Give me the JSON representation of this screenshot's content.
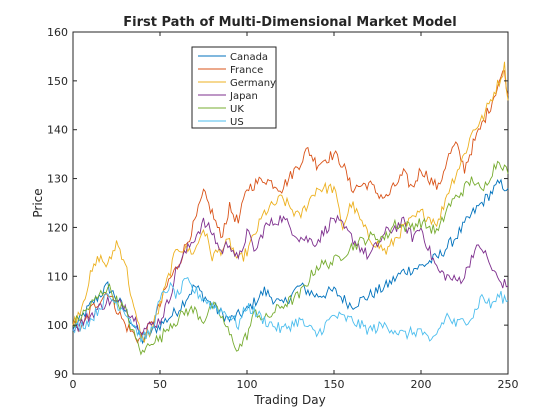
{
  "chart_data": {
    "type": "line",
    "title": "First Path of Multi-Dimensional Market Model",
    "xlabel": "Trading Day",
    "ylabel": "Price",
    "xlim": [
      0,
      250
    ],
    "ylim": [
      90,
      160
    ],
    "xticks": [
      0,
      50,
      100,
      150,
      200,
      250
    ],
    "yticks": [
      90,
      100,
      110,
      120,
      130,
      140,
      150,
      160
    ],
    "grid": false,
    "legend_position": "top-center",
    "series": [
      {
        "name": "Canada",
        "color": "#0072BD",
        "points": [
          [
            0,
            99
          ],
          [
            10,
            104
          ],
          [
            20,
            108
          ],
          [
            30,
            103
          ],
          [
            40,
            97
          ],
          [
            50,
            100
          ],
          [
            60,
            103
          ],
          [
            70,
            108
          ],
          [
            80,
            104
          ],
          [
            90,
            101
          ],
          [
            100,
            103
          ],
          [
            110,
            107
          ],
          [
            120,
            104
          ],
          [
            130,
            108
          ],
          [
            140,
            106
          ],
          [
            150,
            107
          ],
          [
            160,
            104
          ],
          [
            170,
            106
          ],
          [
            180,
            108
          ],
          [
            190,
            111
          ],
          [
            200,
            112
          ],
          [
            210,
            114
          ],
          [
            220,
            118
          ],
          [
            230,
            123
          ],
          [
            240,
            127
          ],
          [
            245,
            129
          ],
          [
            250,
            128
          ]
        ]
      },
      {
        "name": "France",
        "color": "#D95319",
        "points": [
          [
            0,
            100
          ],
          [
            5,
            99
          ],
          [
            10,
            103
          ],
          [
            20,
            107
          ],
          [
            30,
            100
          ],
          [
            38,
            97
          ],
          [
            45,
            100
          ],
          [
            50,
            104
          ],
          [
            55,
            109
          ],
          [
            60,
            112
          ],
          [
            70,
            121
          ],
          [
            75,
            127
          ],
          [
            80,
            123
          ],
          [
            85,
            118
          ],
          [
            90,
            124
          ],
          [
            95,
            121
          ],
          [
            100,
            128
          ],
          [
            110,
            130
          ],
          [
            120,
            128
          ],
          [
            130,
            133
          ],
          [
            135,
            136
          ],
          [
            140,
            133
          ],
          [
            150,
            135
          ],
          [
            155,
            133
          ],
          [
            160,
            128
          ],
          [
            170,
            129
          ],
          [
            175,
            127
          ],
          [
            180,
            126
          ],
          [
            190,
            131
          ],
          [
            195,
            128
          ],
          [
            200,
            132
          ],
          [
            210,
            128
          ],
          [
            215,
            134
          ],
          [
            220,
            137
          ],
          [
            225,
            132
          ],
          [
            230,
            137
          ],
          [
            235,
            141
          ],
          [
            240,
            145
          ],
          [
            245,
            150
          ],
          [
            248,
            152
          ],
          [
            250,
            147
          ]
        ]
      },
      {
        "name": "Germany",
        "color": "#EDB120",
        "points": [
          [
            0,
            100
          ],
          [
            5,
            104
          ],
          [
            10,
            110
          ],
          [
            15,
            114
          ],
          [
            20,
            112
          ],
          [
            25,
            117
          ],
          [
            30,
            113
          ],
          [
            35,
            103
          ],
          [
            40,
            97
          ],
          [
            45,
            99
          ],
          [
            50,
            104
          ],
          [
            55,
            110
          ],
          [
            60,
            116
          ],
          [
            70,
            115
          ],
          [
            75,
            120
          ],
          [
            80,
            114
          ],
          [
            90,
            117
          ],
          [
            95,
            113
          ],
          [
            100,
            115
          ],
          [
            105,
            119
          ],
          [
            110,
            123
          ],
          [
            120,
            126
          ],
          [
            130,
            122
          ],
          [
            140,
            128
          ],
          [
            150,
            128
          ],
          [
            155,
            120
          ],
          [
            160,
            125
          ],
          [
            170,
            118
          ],
          [
            180,
            115
          ],
          [
            190,
            120
          ],
          [
            200,
            123
          ],
          [
            210,
            121
          ],
          [
            215,
            127
          ],
          [
            220,
            131
          ],
          [
            225,
            135
          ],
          [
            230,
            140
          ],
          [
            235,
            142
          ],
          [
            240,
            146
          ],
          [
            245,
            150
          ],
          [
            248,
            153
          ],
          [
            250,
            146
          ]
        ]
      },
      {
        "name": "Japan",
        "color": "#7E2F8E",
        "points": [
          [
            0,
            99
          ],
          [
            10,
            102
          ],
          [
            20,
            105
          ],
          [
            30,
            104
          ],
          [
            40,
            99
          ],
          [
            50,
            101
          ],
          [
            55,
            105
          ],
          [
            60,
            112
          ],
          [
            65,
            115
          ],
          [
            70,
            118
          ],
          [
            75,
            121
          ],
          [
            80,
            119
          ],
          [
            85,
            115
          ],
          [
            90,
            117
          ],
          [
            95,
            113
          ],
          [
            100,
            119
          ],
          [
            105,
            115
          ],
          [
            110,
            120
          ],
          [
            120,
            122
          ],
          [
            130,
            118
          ],
          [
            140,
            117
          ],
          [
            150,
            122
          ],
          [
            160,
            118
          ],
          [
            170,
            114
          ],
          [
            180,
            119
          ],
          [
            190,
            121
          ],
          [
            195,
            118
          ],
          [
            200,
            120
          ],
          [
            205,
            115
          ],
          [
            210,
            111
          ],
          [
            220,
            109
          ],
          [
            225,
            110
          ],
          [
            230,
            115
          ],
          [
            235,
            116
          ],
          [
            240,
            112
          ],
          [
            245,
            109
          ],
          [
            250,
            108
          ]
        ]
      },
      {
        "name": "UK",
        "color": "#77AC30",
        "points": [
          [
            0,
            100
          ],
          [
            5,
            102
          ],
          [
            10,
            104
          ],
          [
            15,
            106
          ],
          [
            20,
            108
          ],
          [
            25,
            105
          ],
          [
            30,
            103
          ],
          [
            35,
            98
          ],
          [
            40,
            94
          ],
          [
            45,
            97
          ],
          [
            50,
            97
          ],
          [
            55,
            100
          ],
          [
            60,
            101
          ],
          [
            65,
            103
          ],
          [
            70,
            103
          ],
          [
            75,
            101
          ],
          [
            80,
            104
          ],
          [
            85,
            102
          ],
          [
            90,
            98
          ],
          [
            95,
            95
          ],
          [
            100,
            98
          ],
          [
            105,
            103
          ],
          [
            110,
            101
          ],
          [
            120,
            104
          ],
          [
            130,
            106
          ],
          [
            140,
            112
          ],
          [
            150,
            113
          ],
          [
            160,
            116
          ],
          [
            170,
            118
          ],
          [
            180,
            118
          ],
          [
            185,
            121
          ],
          [
            190,
            120
          ],
          [
            200,
            121
          ],
          [
            210,
            119
          ],
          [
            215,
            124
          ],
          [
            220,
            126
          ],
          [
            225,
            128
          ],
          [
            230,
            130
          ],
          [
            235,
            127
          ],
          [
            240,
            131
          ],
          [
            245,
            134
          ],
          [
            250,
            131
          ]
        ]
      },
      {
        "name": "US",
        "color": "#4DBEEE",
        "points": [
          [
            0,
            99
          ],
          [
            10,
            101
          ],
          [
            20,
            106
          ],
          [
            30,
            103
          ],
          [
            40,
            97
          ],
          [
            45,
            99
          ],
          [
            50,
            105
          ],
          [
            55,
            108
          ],
          [
            60,
            106
          ],
          [
            65,
            109
          ],
          [
            70,
            107
          ],
          [
            80,
            104
          ],
          [
            90,
            102
          ],
          [
            95,
            100
          ],
          [
            100,
            104
          ],
          [
            110,
            101
          ],
          [
            120,
            99
          ],
          [
            130,
            101
          ],
          [
            140,
            98
          ],
          [
            150,
            102
          ],
          [
            160,
            101
          ],
          [
            170,
            99
          ],
          [
            180,
            100
          ],
          [
            190,
            98
          ],
          [
            200,
            99
          ],
          [
            205,
            96
          ],
          [
            210,
            99
          ],
          [
            215,
            102
          ],
          [
            220,
            100
          ],
          [
            230,
            102
          ],
          [
            235,
            106
          ],
          [
            240,
            104
          ],
          [
            245,
            106
          ],
          [
            250,
            105
          ]
        ]
      }
    ]
  }
}
